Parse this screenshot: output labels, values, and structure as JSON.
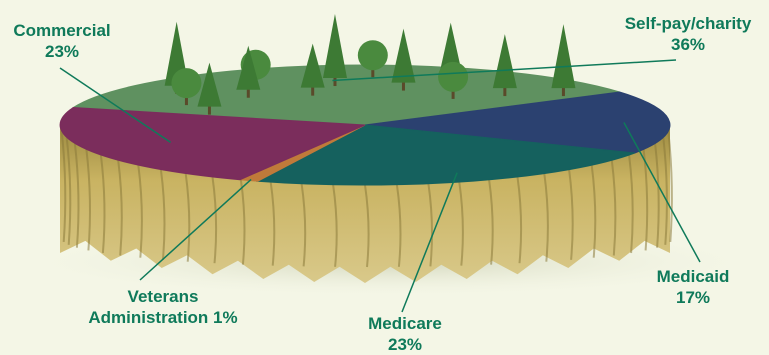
{
  "chart_data": {
    "type": "pie",
    "title": "",
    "slices": [
      {
        "label": "Self-pay/charity",
        "value": 36,
        "value_label": "36%",
        "color": "#5f9160"
      },
      {
        "label": "Medicaid",
        "value": 17,
        "value_label": "17%",
        "color": "#2b4170"
      },
      {
        "label": "Medicare",
        "value": 23,
        "value_label": "23%",
        "color": "#15615e"
      },
      {
        "label": "Veterans Administration",
        "value": 1,
        "value_label": "1%",
        "color": "#c07a3a"
      },
      {
        "label": "Commercial",
        "value": 23,
        "value_label": "23%",
        "color": "#7b2d5c"
      }
    ]
  },
  "labels": {
    "commercial": {
      "line1": "Commercial",
      "line2": "23%"
    },
    "selfpay": {
      "line1": "Self-pay/charity",
      "line2": "36%"
    },
    "medicaid": {
      "line1": "Medicaid",
      "line2": "17%"
    },
    "medicare": {
      "line1": "Medicare",
      "line2": "23%"
    },
    "veterans": {
      "line1": "Veterans",
      "line2": "Administration 1%"
    }
  },
  "colors": {
    "background": "#f4f6e6",
    "label_text": "#0f7a5a",
    "cliff": "#b9a350",
    "cliff_shadow": "#8a7a3a",
    "tree": "#3d7a34"
  }
}
